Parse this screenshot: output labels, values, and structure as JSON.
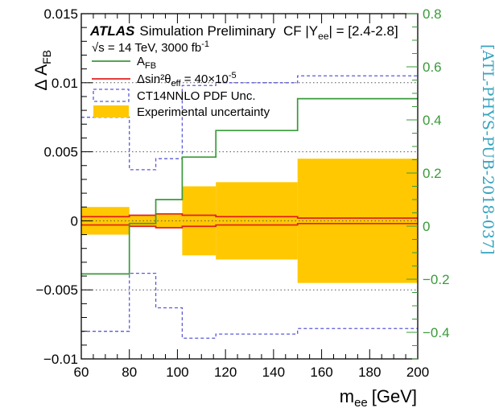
{
  "chart_data": {
    "type": "step",
    "experiment": "ATLAS",
    "status": "Simulation Preliminary",
    "conditions_pre": "√s = 14 TeV, 3000 fb",
    "conditions_sup": "-1",
    "region_pre": "CF |Y",
    "region_sub": "ee",
    "region_post": "| = [2.4-2.8]",
    "ylabel_left": "Δ A",
    "ylabel_left_sub": "FB",
    "ylabel_right": "",
    "xlabel": "m",
    "xlabel_sub": "ee",
    "xlabel_unit": "[GeV]",
    "side_label": "[ATL-PHYS-PUB-2018-037]",
    "xlim": [
      60,
      200
    ],
    "ylim_left": [
      -0.01,
      0.015
    ],
    "ylim_right": [
      -0.5,
      0.8
    ],
    "x_ticks": [
      60,
      80,
      100,
      120,
      140,
      160,
      180,
      200
    ],
    "y_left_ticks": [
      {
        "value": -0.01,
        "label": "−0.01"
      },
      {
        "value": -0.005,
        "label": "−0.005"
      },
      {
        "value": 0,
        "label": "0"
      },
      {
        "value": 0.005,
        "label": "0.005"
      },
      {
        "value": 0.01,
        "label": "0.01"
      },
      {
        "value": 0.015,
        "label": "0.015"
      }
    ],
    "y_right_ticks": [
      {
        "value": -0.4,
        "label": "−0.4"
      },
      {
        "value": -0.2,
        "label": "−0.2"
      },
      {
        "value": 0,
        "label": "0"
      },
      {
        "value": 0.2,
        "label": "0.2"
      },
      {
        "value": 0.4,
        "label": "0.4"
      },
      {
        "value": 0.6,
        "label": "0.6"
      },
      {
        "value": 0.8,
        "label": "0.8"
      }
    ],
    "dotted_grid_left": [
      -0.005,
      0,
      0.005,
      0.01
    ],
    "bin_edges": [
      60,
      80,
      91,
      102,
      116,
      150,
      200
    ],
    "series": [
      {
        "key": "afb",
        "axis": "right",
        "style": "solid",
        "color": "#3a9a3a",
        "legend_text": "A",
        "legend_sub": "FB",
        "values": [
          -0.18,
          0.01,
          0.1,
          0.26,
          0.36,
          0.48
        ]
      },
      {
        "key": "sin2",
        "axis": "left",
        "style": "solid",
        "color": "#e02020",
        "legend_text": "Δsin²θ",
        "legend_sub": "eff",
        "legend_post": " = 40×10",
        "legend_sup": "-5",
        "upper": [
          0.0003,
          0.0004,
          0.0005,
          0.0004,
          0.0003,
          0.0002
        ],
        "lower": [
          -0.0003,
          -0.0004,
          -0.0005,
          -0.0004,
          -0.0003,
          -0.0002
        ]
      },
      {
        "key": "pdf",
        "axis": "left",
        "style": "dashed",
        "color": "#5a5ad8",
        "legend_text": "CT14NNLO PDF Unc.",
        "upper": [
          0.0075,
          0.0037,
          0.0045,
          0.0098,
          0.01,
          0.0105
        ],
        "lower": [
          -0.008,
          -0.0038,
          -0.0063,
          -0.0085,
          -0.0082,
          -0.0078
        ]
      },
      {
        "key": "exp",
        "axis": "left",
        "style": "band",
        "color": "#ffc800",
        "legend_text": "Experimental uncertainty",
        "upper": [
          0.001,
          0.0004,
          0.0005,
          0.0025,
          0.0028,
          0.0045
        ],
        "lower": [
          -0.001,
          -0.0004,
          -0.0005,
          -0.0025,
          -0.0028,
          -0.0045
        ]
      }
    ]
  }
}
